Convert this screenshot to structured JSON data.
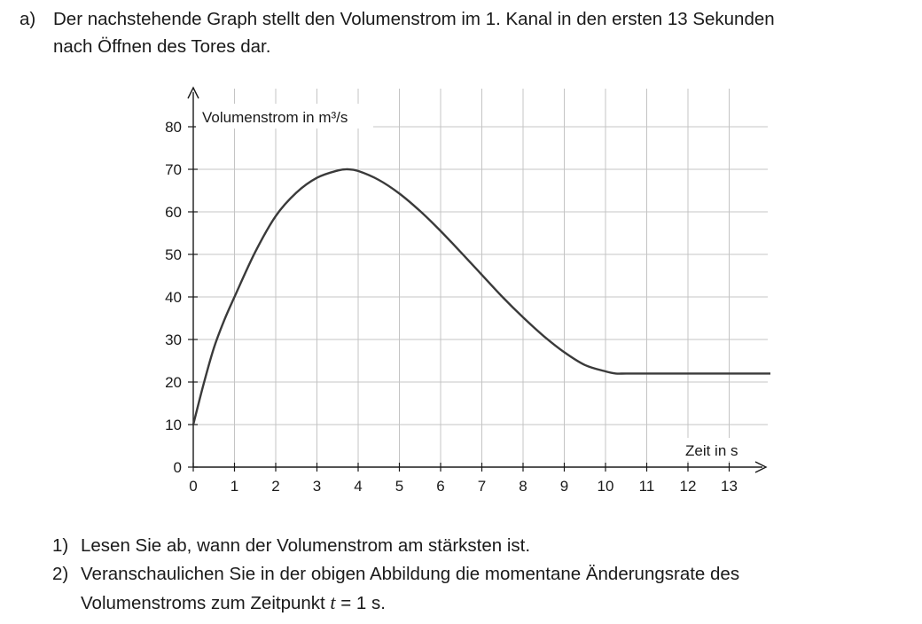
{
  "task": {
    "label": "a)",
    "intro_line1": "Der nachstehende Graph stellt den Volumenstrom im 1. Kanal in den ersten 13 Sekunden",
    "intro_line2": "nach Öffnen des Tores dar."
  },
  "questions": [
    {
      "number": "1)",
      "text_line1": "Lesen Sie ab, wann der Volumenstrom am stärksten ist."
    },
    {
      "number": "2)",
      "text_line1": "Veranschaulichen Sie in der obigen Abbildung die momentane Änderungsrate des",
      "text_line2_pre": "Volumenstroms zum Zeitpunkt ",
      "text_line2_var": "t",
      "text_line2_post": " = 1 s."
    }
  ],
  "colors": {
    "grid": "#c4c4c4",
    "axis": "#1a1a1a",
    "curve": "#3a3a3a"
  },
  "chart_data": {
    "type": "line",
    "xlabel": "Zeit in s",
    "ylabel": "Volumenstrom in m³/s",
    "xlim": [
      0,
      14
    ],
    "ylim": [
      0,
      85
    ],
    "x_ticks": [
      0,
      1,
      2,
      3,
      4,
      5,
      6,
      7,
      8,
      9,
      10,
      11,
      12,
      13
    ],
    "y_ticks": [
      0,
      10,
      20,
      30,
      40,
      50,
      60,
      70,
      80
    ],
    "grid": true,
    "series": [
      {
        "x": [
          0,
          0.25,
          0.5,
          0.75,
          1,
          1.5,
          2,
          2.5,
          3,
          3.5,
          3.75,
          4,
          4.5,
          5,
          5.5,
          6,
          6.5,
          7,
          7.5,
          8,
          8.5,
          9,
          9.5,
          10,
          10.25,
          10.5,
          11,
          12,
          13,
          14
        ],
        "y": [
          10,
          19.5,
          28,
          34.5,
          40,
          50.5,
          59,
          64.5,
          68,
          69.7,
          70,
          69.6,
          67.5,
          64.3,
          60.2,
          55.5,
          50.4,
          45.2,
          40,
          35.2,
          30.8,
          27,
          24,
          22.5,
          22,
          22,
          22,
          22,
          22,
          22
        ]
      }
    ]
  }
}
